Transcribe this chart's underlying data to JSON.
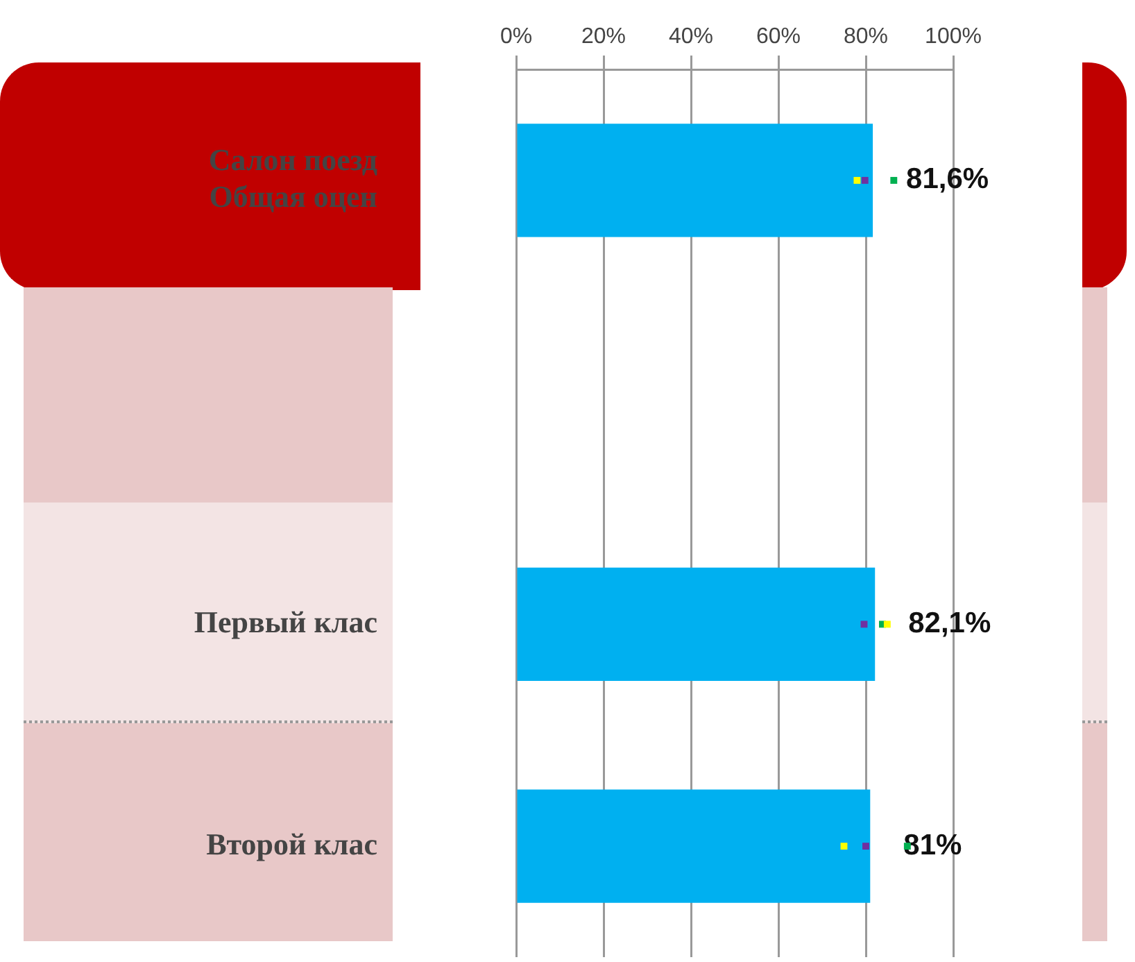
{
  "chart_data": {
    "type": "bar",
    "orientation": "horizontal",
    "categories": [
      "Салон поезд\nОбщая оцен",
      null,
      "Первый клас",
      "Второй клас"
    ],
    "series": [
      {
        "color": "#00b0f0",
        "values": [
          81.6,
          null,
          82.1,
          81
        ],
        "value_labels": [
          "81,6%",
          null,
          "82,1%",
          "81%"
        ]
      },
      {
        "type": "scatter",
        "color": "#ffff00",
        "x": [
          "Салон поезд\nОбщая оцен",
          "Первый клас",
          "Второй клас"
        ],
        "values": [
          78,
          84.9,
          75
        ]
      },
      {
        "type": "scatter",
        "color": "#7030a0",
        "x": [
          "Салон поезд\nОбщая оцен",
          "Первый клас",
          "Второй клас"
        ],
        "values": [
          79.8,
          79.6,
          80
        ]
      },
      {
        "type": "scatter",
        "color": "#00b050",
        "x": [
          "Салон поезд\nОбщая оцен",
          "Первый клас",
          "Второй клас"
        ],
        "values": [
          86.4,
          83.8,
          89.5
        ]
      }
    ],
    "xlim": [
      0,
      100
    ],
    "xticks": [
      {
        "value": 0,
        "label": "0%"
      },
      {
        "value": 20,
        "label": "20%"
      },
      {
        "value": 40,
        "label": "40%"
      },
      {
        "value": 60,
        "label": "60%"
      },
      {
        "value": 80,
        "label": "80%"
      },
      {
        "value": 100,
        "label": "100%"
      }
    ],
    "grid": "x",
    "legend": false,
    "marker": "square"
  }
}
